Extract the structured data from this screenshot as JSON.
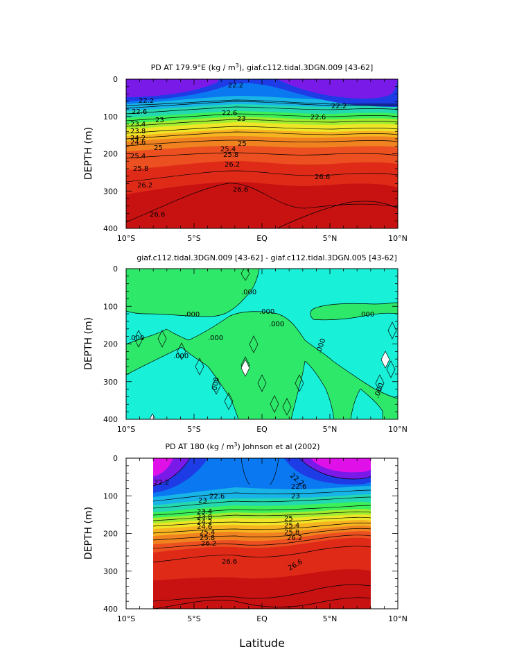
{
  "figure": {
    "xlabel_bottom": "Latitude"
  },
  "chart_data": [
    {
      "id": "panel1",
      "type": "heatmap",
      "title_parts": [
        "PD AT 179.9°E (kg / m",
        "3",
        "), giaf.c112.tidal.3DGN.009 [43-62]"
      ],
      "xlabel": "",
      "ylabel": "DEPTH (m)",
      "xlim": [
        -10,
        10
      ],
      "ylim": [
        0,
        400
      ],
      "xticks": [
        -10,
        -5,
        0,
        5,
        10
      ],
      "xtick_labels": [
        "10°S",
        "5°S",
        "EQ",
        "5°N",
        "10°N"
      ],
      "yticks": [
        0,
        100,
        200,
        300,
        400
      ],
      "ytick_labels": [
        "0",
        "100",
        "200",
        "300",
        "400"
      ],
      "levels": [
        22.2,
        22.6,
        23.0,
        23.4,
        23.8,
        24.2,
        24.6,
        25.0,
        25.4,
        25.8,
        26.2,
        26.6
      ],
      "contour_labels": [
        "22.2",
        "22.2",
        "22.2",
        "22.6",
        "22.6",
        "22.6",
        "23",
        "23",
        "23.4",
        "23.8",
        "24.2",
        "24.6",
        "25",
        "25",
        "25.4",
        "25.4",
        "25.8",
        "25.8",
        "26.2",
        "26.2",
        "26.6",
        "26.6",
        "26.6"
      ],
      "colors": [
        "#7a1ae8",
        "#1e3ce6",
        "#0a78f0",
        "#18b4e8",
        "#24d8b0",
        "#3cf05a",
        "#a0ec30",
        "#f0e628",
        "#f6b420",
        "#f08220",
        "#ec5020",
        "#e02a18",
        "#c81212"
      ]
    },
    {
      "id": "panel2",
      "type": "heatmap",
      "title_parts": [
        "giaf.c112.tidal.3DGN.009 [43-62] - giaf.c112.tidal.3DGN.005 [43-62]"
      ],
      "xlabel": "",
      "ylabel": "DEPTH (m)",
      "xlim": [
        -10,
        10
      ],
      "ylim": [
        0,
        400
      ],
      "xticks": [
        -10,
        -5,
        0,
        5,
        10
      ],
      "xtick_labels": [
        "10°S",
        "5°S",
        "EQ",
        "5°N",
        "10°N"
      ],
      "yticks": [
        0,
        100,
        200,
        300,
        400
      ],
      "ytick_labels": [
        "0",
        "100",
        "200",
        "300",
        "400"
      ],
      "levels": [
        0.0
      ],
      "contour_labels": [
        ".000",
        ".000",
        ".000",
        ".000",
        ".000",
        ".000",
        ".000",
        ".000",
        ".000",
        ".000",
        ".000"
      ],
      "colors": [
        "#18f0d8",
        "#2ee86a"
      ]
    },
    {
      "id": "panel3",
      "type": "heatmap",
      "title_parts": [
        "PD AT 180 (kg / m",
        "3",
        ") Johnson et al (2002)"
      ],
      "xlabel": "Latitude",
      "ylabel": "DEPTH (m)",
      "xlim": [
        -10,
        10
      ],
      "ylim": [
        0,
        400
      ],
      "data_xlim": [
        -8,
        8
      ],
      "xticks": [
        -10,
        -5,
        0,
        5,
        10
      ],
      "xtick_labels": [
        "10°S",
        "5°S",
        "EQ",
        "5°N",
        "10°N"
      ],
      "yticks": [
        0,
        100,
        200,
        300,
        400
      ],
      "ytick_labels": [
        "0",
        "100",
        "200",
        "300",
        "400"
      ],
      "levels": [
        22.2,
        22.6,
        23.0,
        23.4,
        23.8,
        24.2,
        24.6,
        25.0,
        25.4,
        25.8,
        26.2,
        26.6
      ],
      "contour_labels": [
        "22.2",
        "22.2",
        "22.6",
        "22.6",
        "23",
        "23",
        "23.4",
        "23.8",
        "24.2",
        "24.6",
        "25",
        "25.4",
        "25.4",
        "25.8",
        "25.8",
        "26.2",
        "26.2",
        "26.6",
        "26.6"
      ],
      "colors": [
        "#e010e8",
        "#7a1ae8",
        "#1e3ce6",
        "#0a78f0",
        "#18b4e8",
        "#24d8b0",
        "#3cf05a",
        "#a0ec30",
        "#f0e628",
        "#f6b420",
        "#f08220",
        "#ec5020",
        "#e02a18",
        "#c81212"
      ]
    }
  ]
}
